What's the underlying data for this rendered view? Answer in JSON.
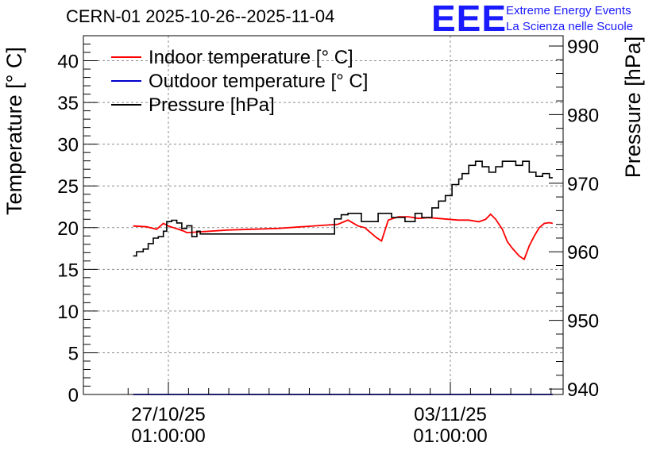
{
  "title": "CERN-01 2025-10-26--2025-11-04",
  "logo": {
    "mark": "EEE",
    "line1": "Extreme Energy Events",
    "line2": "La Scienza nelle Scuole",
    "color": "#1a1aff"
  },
  "chart_data": {
    "type": "line",
    "title": "CERN-01 2025-10-26--2025-11-04",
    "xlabel": "",
    "ylabel": "Temperature [° C]",
    "y2label": "Pressure [hPa]",
    "x_ticks": [
      {
        "line1": "27/10/25",
        "line2": "01:00:00",
        "x": "2025-10-27 01:00"
      },
      {
        "line1": "03/11/25",
        "line2": "01:00:00",
        "x": "2025-11-03 01:00"
      }
    ],
    "ylim": [
      0,
      43
    ],
    "y_ticks": [
      0,
      5,
      10,
      15,
      20,
      25,
      30,
      35,
      40
    ],
    "y2lim": [
      939.2,
      991.5
    ],
    "y2_ticks": [
      940,
      950,
      960,
      970,
      980,
      990
    ],
    "grid": true,
    "legend_position": "top-left",
    "series": [
      {
        "name": "Indoor temperature [° C]",
        "color": "#ff0000",
        "axis": "left",
        "x": [
          "2025-10-26 04:00",
          "2025-10-26 12:00",
          "2025-10-26 18:00",
          "2025-10-26 22:00",
          "2025-10-27 01:00",
          "2025-10-27 04:00",
          "2025-10-27 07:00",
          "2025-10-27 10:00",
          "2025-10-27 12:00",
          "2025-10-28 12:00",
          "2025-10-29 18:00",
          "2025-10-31 06:00",
          "2025-10-31 12:00",
          "2025-10-31 18:00",
          "2025-10-31 22:00",
          "2025-11-01 02:00",
          "2025-11-01 05:00",
          "2025-11-01 08:00",
          "2025-11-01 12:00",
          "2025-11-01 18:00",
          "2025-11-02 00:00",
          "2025-11-02 06:00",
          "2025-11-02 12:00",
          "2025-11-02 18:00",
          "2025-11-03 00:00",
          "2025-11-03 06:00",
          "2025-11-03 12:00",
          "2025-11-03 18:00",
          "2025-11-03 22:00",
          "2025-11-04 01:00",
          "2025-11-04 04:00",
          "2025-11-04 08:00",
          "2025-11-04 11:00",
          "2025-11-04 14:00",
          "2025-11-04 18:00",
          "2025-11-04 21:00",
          "2025-11-05 00:00",
          "2025-11-05 03:00",
          "2025-11-05 06:00",
          "2025-11-05 09:00",
          "2025-11-05 12:00",
          "2025-11-05 14:00"
        ],
        "y": [
          20.2,
          20.1,
          19.8,
          20.5,
          20.2,
          20.0,
          19.8,
          19.6,
          19.4,
          19.7,
          19.9,
          20.4,
          20.9,
          20.2,
          20.0,
          19.3,
          18.8,
          18.4,
          20.9,
          21.3,
          21.3,
          21.1,
          21.2,
          21.1,
          21.0,
          20.9,
          20.9,
          20.7,
          21.0,
          21.6,
          21.0,
          19.8,
          18.3,
          17.5,
          16.6,
          16.2,
          17.8,
          19.0,
          20.0,
          20.5,
          20.6,
          20.5
        ]
      },
      {
        "name": "Outdoor temperature [° C]",
        "color": "#0000cc",
        "axis": "left",
        "x": [
          "2025-10-26 04:00",
          "2025-11-05 14:00"
        ],
        "y": [
          0,
          0
        ]
      },
      {
        "name": "Pressure [hPa]",
        "color": "#000000",
        "axis": "right",
        "x": [
          "2025-10-26 04:00",
          "2025-10-26 06:00",
          "2025-10-26 10:00",
          "2025-10-26 13:00",
          "2025-10-26 16:00",
          "2025-10-26 19:00",
          "2025-10-26 22:00",
          "2025-10-27 00:00",
          "2025-10-27 03:00",
          "2025-10-27 06:00",
          "2025-10-27 09:00",
          "2025-10-27 12:00",
          "2025-10-27 15:00",
          "2025-10-27 18:00",
          "2025-10-27 20:00",
          "2025-10-31 04:00",
          "2025-10-31 08:00",
          "2025-10-31 12:00",
          "2025-10-31 20:00",
          "2025-11-01 06:00",
          "2025-11-01 14:00",
          "2025-11-01 22:00",
          "2025-11-02 04:00",
          "2025-11-02 08:00",
          "2025-11-02 14:00",
          "2025-11-02 18:00",
          "2025-11-02 22:00",
          "2025-11-03 02:00",
          "2025-11-03 06:00",
          "2025-11-03 08:00",
          "2025-11-03 12:00",
          "2025-11-03 16:00",
          "2025-11-03 20:00",
          "2025-11-04 00:00",
          "2025-11-04 04:00",
          "2025-11-04 08:00",
          "2025-11-04 12:00",
          "2025-11-04 16:00",
          "2025-11-04 20:00",
          "2025-11-05 00:00",
          "2025-11-05 04:00",
          "2025-11-05 08:00",
          "2025-11-05 12:00",
          "2025-11-05 14:00"
        ],
        "y": [
          959.4,
          960.0,
          960.4,
          961.2,
          962.0,
          962.2,
          963.0,
          964.4,
          964.6,
          964.2,
          963.4,
          963.8,
          962.2,
          963.0,
          962.6,
          964.8,
          965.4,
          965.6,
          964.4,
          965.6,
          965.0,
          964.4,
          965.6,
          965.0,
          966.4,
          967.4,
          968.2,
          969.8,
          970.6,
          971.4,
          972.6,
          973.2,
          972.4,
          971.6,
          972.4,
          973.2,
          973.2,
          972.6,
          973.2,
          971.6,
          971.0,
          971.4,
          970.8,
          970.8
        ]
      }
    ]
  }
}
